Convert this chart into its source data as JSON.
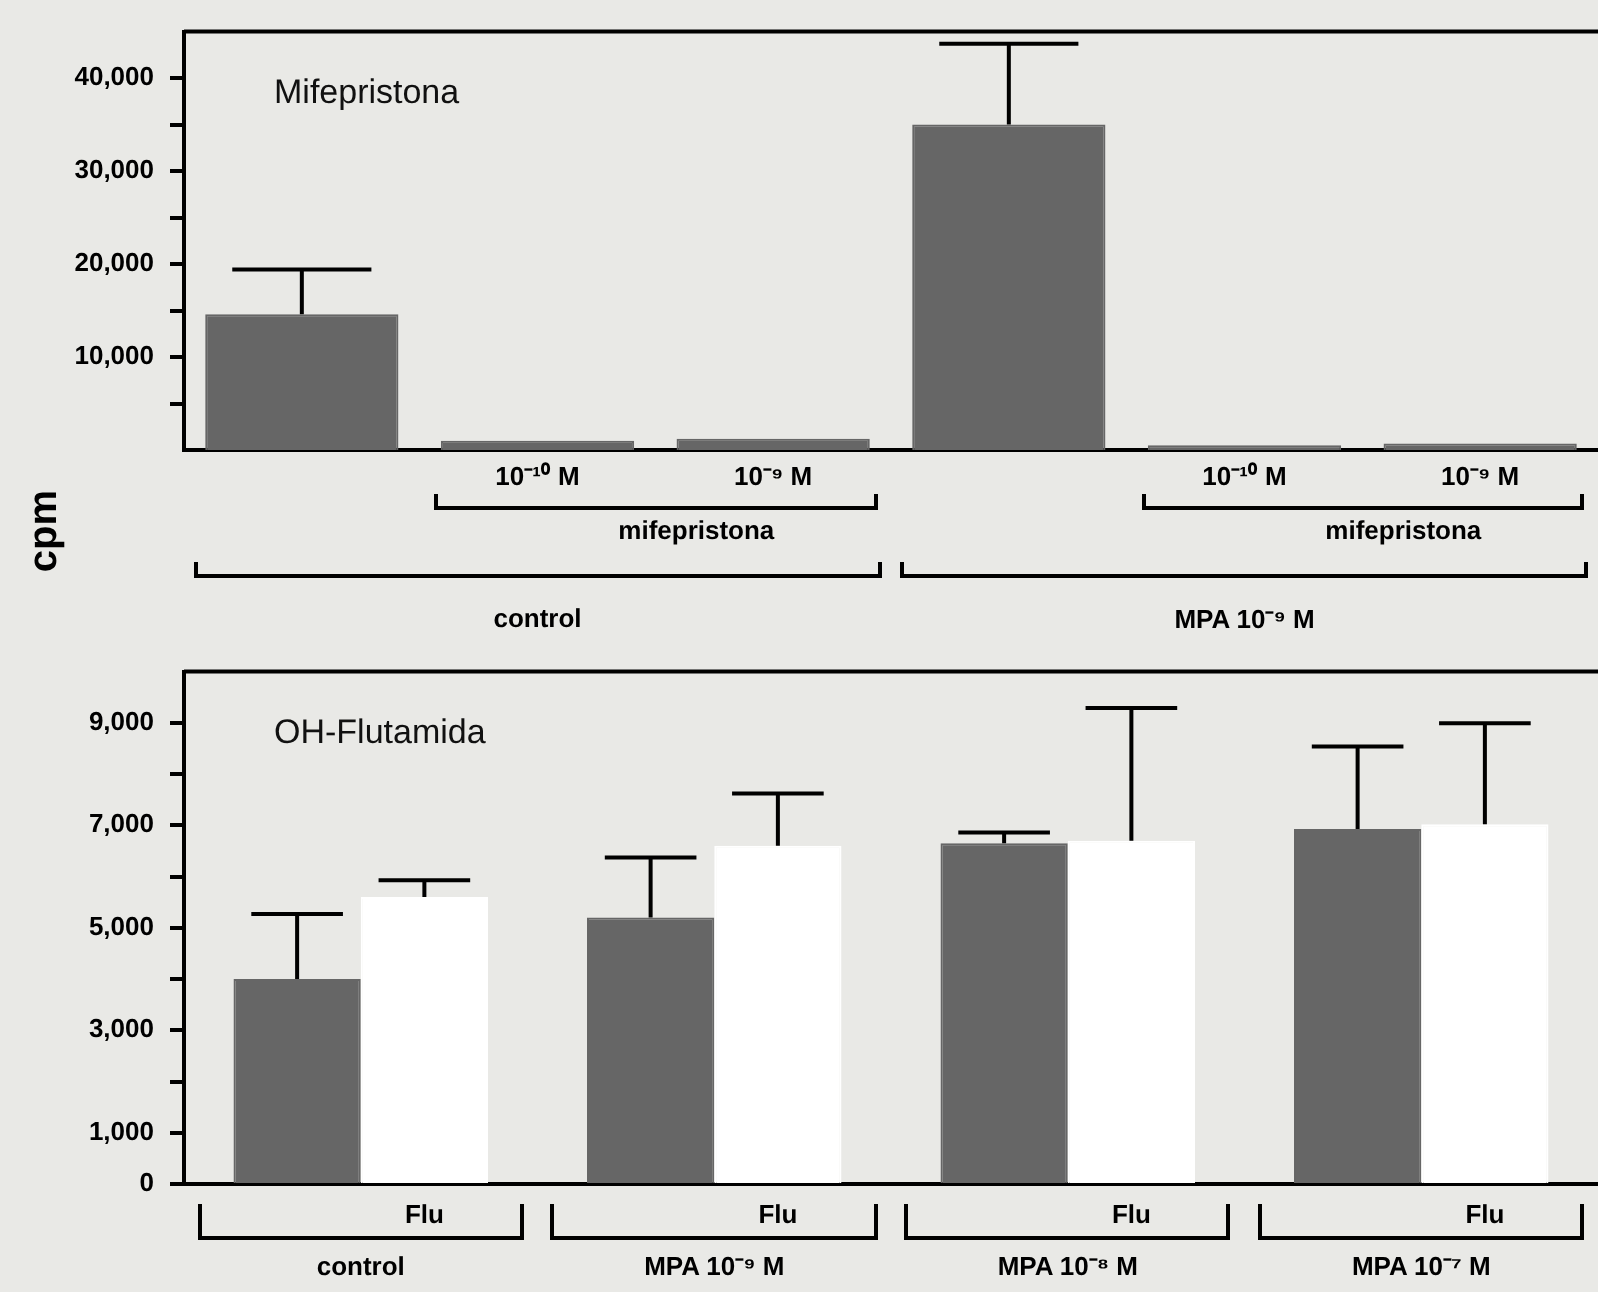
{
  "chart_data": [
    {
      "type": "bar",
      "title": "Mifepristona",
      "ylabel": "cpm",
      "categories": [
        null,
        "10⁻¹⁰ M",
        "10⁻⁹ M",
        null,
        "10⁻¹⁰ M",
        "10⁻⁹ M"
      ],
      "values": [
        14600,
        1000,
        1200,
        35000,
        500,
        700
      ],
      "errors": [
        [
          14600,
          19400
        ],
        null,
        null,
        [
          35000,
          43700
        ],
        null,
        null
      ],
      "color": "#666666",
      "ylim": [
        0,
        45000
      ],
      "yticks": [
        {
          "value": 5000,
          "label": null
        },
        {
          "value": 10000,
          "label": "10,000"
        },
        {
          "value": 15000,
          "label": null
        },
        {
          "value": 20000,
          "label": "20,000"
        },
        {
          "value": 25000,
          "label": null
        },
        {
          "value": 30000,
          "label": "30,000"
        },
        {
          "value": 35000,
          "label": null
        },
        {
          "value": 40000,
          "label": "40,000"
        }
      ],
      "annotations": [
        "mifepristona",
        "control",
        "mifepristona",
        "MPA 10⁻⁹ M"
      ],
      "grid": false,
      "legend": false
    },
    {
      "type": "bar",
      "title": "OH-Flutamida",
      "categories": [
        "control",
        "MPA 10⁻⁹ M",
        "MPA 10⁻⁸ M",
        "MPA 10⁻⁷ M"
      ],
      "series": [
        {
          "color": "#666666",
          "values": [
            4000,
            5200,
            6650,
            6930
          ],
          "errors": [
            [
              4000,
              5270
            ],
            [
              5200,
              6370
            ],
            [
              6650,
              6860
            ],
            [
              6930,
              8540
            ]
          ]
        },
        {
          "name": "Flu",
          "color": "#ffffff",
          "values": [
            5600,
            6600,
            6700,
            7020
          ],
          "errors": [
            [
              5600,
              5930
            ],
            [
              6600,
              7620
            ],
            [
              6700,
              9290
            ],
            [
              7020,
              8990
            ]
          ]
        }
      ],
      "ylim": [
        0,
        10000
      ],
      "yticks": [
        {
          "value": 0,
          "label": "0"
        },
        {
          "value": 1000,
          "label": "1,000"
        },
        {
          "value": 2000,
          "label": null
        },
        {
          "value": 3000,
          "label": "3,000"
        },
        {
          "value": 4000,
          "label": null
        },
        {
          "value": 5000,
          "label": "5,000"
        },
        {
          "value": 6000,
          "label": null
        },
        {
          "value": 7000,
          "label": "7,000"
        },
        {
          "value": 8000,
          "label": null
        },
        {
          "value": 9000,
          "label": "9,000"
        }
      ],
      "grid": false,
      "legend": false
    }
  ]
}
